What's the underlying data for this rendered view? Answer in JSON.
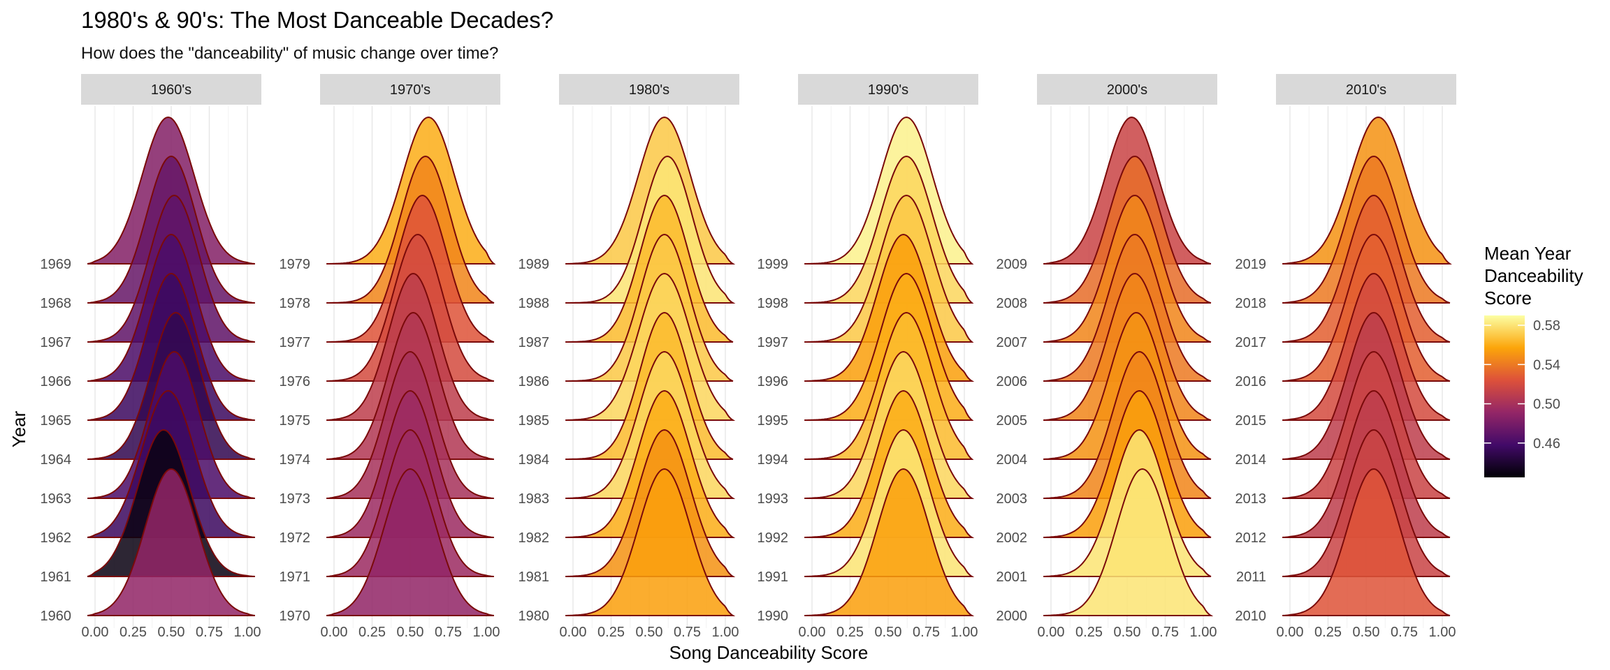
{
  "title": "1980's & 90's: The Most Danceable Decades?",
  "subtitle": "How does the \"danceability\" of music change over time?",
  "chart_data": {
    "type": "ridgeline",
    "xlabel": "Song Danceability Score",
    "ylabel": "Year",
    "xlim": [
      0,
      1
    ],
    "x_ticks": [
      "0.00",
      "0.25",
      "0.50",
      "0.75",
      "1.00"
    ],
    "grid": true,
    "legend": {
      "title_lines": [
        "Mean Year",
        "Danceability",
        "Score"
      ],
      "ticks": [
        "0.58",
        "0.54",
        "0.50",
        "0.46"
      ],
      "tick_values": [
        0.58,
        0.54,
        0.5,
        0.46
      ],
      "range": [
        0.425,
        0.59
      ],
      "colors": [
        "#000004",
        "#420a68",
        "#932667",
        "#dd513a",
        "#fca50a",
        "#fcffa4"
      ],
      "placement": "right"
    },
    "panels": [
      {
        "label": "1960's",
        "years": [
          {
            "year": "1960",
            "mean": 0.49,
            "peak": 0.5,
            "sd": 0.17
          },
          {
            "year": "1961",
            "mean": 0.43,
            "peak": 0.45,
            "sd": 0.17
          },
          {
            "year": "1962",
            "mean": 0.455,
            "peak": 0.48,
            "sd": 0.17
          },
          {
            "year": "1963",
            "mean": 0.462,
            "peak": 0.52,
            "sd": 0.16
          },
          {
            "year": "1964",
            "mean": 0.45,
            "peak": 0.53,
            "sd": 0.16
          },
          {
            "year": "1965",
            "mean": 0.455,
            "peak": 0.5,
            "sd": 0.16
          },
          {
            "year": "1966",
            "mean": 0.462,
            "peak": 0.5,
            "sd": 0.16
          },
          {
            "year": "1967",
            "mean": 0.47,
            "peak": 0.52,
            "sd": 0.16
          },
          {
            "year": "1968",
            "mean": 0.473,
            "peak": 0.5,
            "sd": 0.16
          },
          {
            "year": "1969",
            "mean": 0.485,
            "peak": 0.48,
            "sd": 0.17
          }
        ]
      },
      {
        "label": "1970's",
        "years": [
          {
            "year": "1970",
            "mean": 0.49,
            "peak": 0.5,
            "sd": 0.17
          },
          {
            "year": "1971",
            "mean": 0.495,
            "peak": 0.5,
            "sd": 0.16
          },
          {
            "year": "1972",
            "mean": 0.495,
            "peak": 0.5,
            "sd": 0.16
          },
          {
            "year": "1973",
            "mean": 0.5,
            "peak": 0.5,
            "sd": 0.16
          },
          {
            "year": "1974",
            "mean": 0.505,
            "peak": 0.52,
            "sd": 0.16
          },
          {
            "year": "1975",
            "mean": 0.51,
            "peak": 0.52,
            "sd": 0.16
          },
          {
            "year": "1976",
            "mean": 0.52,
            "peak": 0.55,
            "sd": 0.16
          },
          {
            "year": "1977",
            "mean": 0.525,
            "peak": 0.58,
            "sd": 0.16
          },
          {
            "year": "1978",
            "mean": 0.545,
            "peak": 0.6,
            "sd": 0.16
          },
          {
            "year": "1979",
            "mean": 0.56,
            "peak": 0.62,
            "sd": 0.17
          }
        ]
      },
      {
        "label": "1980's",
        "years": [
          {
            "year": "1980",
            "mean": 0.555,
            "peak": 0.6,
            "sd": 0.17
          },
          {
            "year": "1981",
            "mean": 0.55,
            "peak": 0.6,
            "sd": 0.17
          },
          {
            "year": "1982",
            "mean": 0.56,
            "peak": 0.6,
            "sd": 0.17
          },
          {
            "year": "1983",
            "mean": 0.575,
            "peak": 0.6,
            "sd": 0.17
          },
          {
            "year": "1984",
            "mean": 0.565,
            "peak": 0.6,
            "sd": 0.16
          },
          {
            "year": "1985",
            "mean": 0.575,
            "peak": 0.6,
            "sd": 0.17
          },
          {
            "year": "1986",
            "mean": 0.57,
            "peak": 0.6,
            "sd": 0.16
          },
          {
            "year": "1987",
            "mean": 0.565,
            "peak": 0.6,
            "sd": 0.16
          },
          {
            "year": "1988",
            "mean": 0.58,
            "peak": 0.62,
            "sd": 0.16
          },
          {
            "year": "1989",
            "mean": 0.57,
            "peak": 0.6,
            "sd": 0.17
          }
        ]
      },
      {
        "label": "1990's",
        "years": [
          {
            "year": "1990",
            "mean": 0.555,
            "peak": 0.6,
            "sd": 0.17
          },
          {
            "year": "1991",
            "mean": 0.58,
            "peak": 0.6,
            "sd": 0.17
          },
          {
            "year": "1992",
            "mean": 0.56,
            "peak": 0.6,
            "sd": 0.17
          },
          {
            "year": "1993",
            "mean": 0.575,
            "peak": 0.6,
            "sd": 0.17
          },
          {
            "year": "1994",
            "mean": 0.565,
            "peak": 0.62,
            "sd": 0.17
          },
          {
            "year": "1995",
            "mean": 0.56,
            "peak": 0.62,
            "sd": 0.17
          },
          {
            "year": "1996",
            "mean": 0.555,
            "peak": 0.6,
            "sd": 0.17
          },
          {
            "year": "1997",
            "mean": 0.57,
            "peak": 0.62,
            "sd": 0.17
          },
          {
            "year": "1998",
            "mean": 0.575,
            "peak": 0.62,
            "sd": 0.17
          },
          {
            "year": "1999",
            "mean": 0.585,
            "peak": 0.62,
            "sd": 0.17
          }
        ]
      },
      {
        "label": "2000's",
        "years": [
          {
            "year": "2000",
            "mean": 0.58,
            "peak": 0.6,
            "sd": 0.17
          },
          {
            "year": "2001",
            "mean": 0.58,
            "peak": 0.58,
            "sd": 0.17
          },
          {
            "year": "2002",
            "mean": 0.555,
            "peak": 0.58,
            "sd": 0.17
          },
          {
            "year": "2003",
            "mean": 0.545,
            "peak": 0.58,
            "sd": 0.17
          },
          {
            "year": "2004",
            "mean": 0.55,
            "peak": 0.56,
            "sd": 0.17
          },
          {
            "year": "2005",
            "mean": 0.545,
            "peak": 0.55,
            "sd": 0.17
          },
          {
            "year": "2006",
            "mean": 0.54,
            "peak": 0.55,
            "sd": 0.17
          },
          {
            "year": "2007",
            "mean": 0.545,
            "peak": 0.55,
            "sd": 0.17
          },
          {
            "year": "2008",
            "mean": 0.535,
            "peak": 0.55,
            "sd": 0.17
          },
          {
            "year": "2009",
            "mean": 0.515,
            "peak": 0.53,
            "sd": 0.17
          }
        ]
      },
      {
        "label": "2010's",
        "years": [
          {
            "year": "2010",
            "mean": 0.525,
            "peak": 0.55,
            "sd": 0.17
          },
          {
            "year": "2011",
            "mean": 0.515,
            "peak": 0.55,
            "sd": 0.17
          },
          {
            "year": "2012",
            "mean": 0.51,
            "peak": 0.55,
            "sd": 0.17
          },
          {
            "year": "2013",
            "mean": 0.515,
            "peak": 0.55,
            "sd": 0.17
          },
          {
            "year": "2014",
            "mean": 0.51,
            "peak": 0.55,
            "sd": 0.17
          },
          {
            "year": "2015",
            "mean": 0.52,
            "peak": 0.55,
            "sd": 0.17
          },
          {
            "year": "2016",
            "mean": 0.53,
            "peak": 0.55,
            "sd": 0.17
          },
          {
            "year": "2017",
            "mean": 0.53,
            "peak": 0.55,
            "sd": 0.17
          },
          {
            "year": "2018",
            "mean": 0.54,
            "peak": 0.55,
            "sd": 0.17
          },
          {
            "year": "2019",
            "mean": 0.55,
            "peak": 0.58,
            "sd": 0.18
          }
        ]
      }
    ]
  }
}
